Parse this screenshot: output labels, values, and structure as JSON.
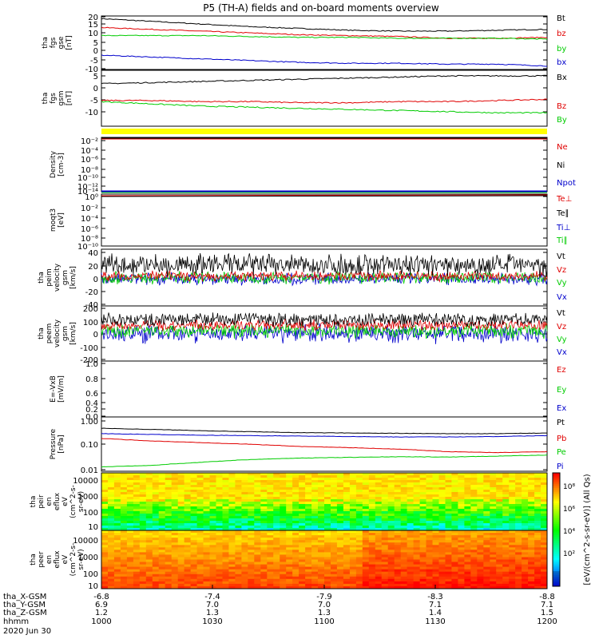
{
  "title": "P5 (TH-A) fields and on-board moments overview",
  "colors": {
    "black": "#000000",
    "red": "#e00000",
    "green": "#00cc00",
    "blue": "#0000cc",
    "yellow": "#ffff00"
  },
  "chart_data": [
    {
      "id": "fgs_gse",
      "type": "line",
      "ylabel": [
        "tha",
        "fgs",
        "gse",
        "[nT]"
      ],
      "ylim": [
        -10,
        20
      ],
      "ticks": [
        "20",
        "15",
        "10",
        "5",
        "0",
        "-5",
        "-10"
      ],
      "series": [
        {
          "name": "Bt",
          "color": "black",
          "values": [
            18.5,
            17,
            15.5,
            14,
            13,
            12,
            11.5,
            11.5,
            12,
            12.5
          ]
        },
        {
          "name": "bz",
          "color": "red",
          "values": [
            13.5,
            12.5,
            11.5,
            10.5,
            9.5,
            9,
            8.5,
            7.5,
            7.5,
            8
          ]
        },
        {
          "name": "by",
          "color": "green",
          "values": [
            9,
            9,
            9,
            8.5,
            8,
            8,
            7.5,
            7.5,
            7.5,
            7
          ]
        },
        {
          "name": "bx",
          "color": "blue",
          "values": [
            -2,
            -3,
            -4,
            -5,
            -6,
            -6.5,
            -6.5,
            -7,
            -7,
            -8
          ]
        }
      ]
    },
    {
      "id": "fgs_gsm",
      "type": "line",
      "ylabel": [
        "tha",
        "fgs",
        "gsm",
        "[nT]"
      ],
      "ylim": [
        -15,
        10
      ],
      "ticks": [
        "5",
        "0",
        "-5",
        "-10"
      ],
      "series": [
        {
          "name": "Bx",
          "color": "black",
          "values": [
            4,
            4.5,
            5,
            5.5,
            6,
            6.5,
            7,
            7.5,
            7.5,
            7.5
          ]
        },
        {
          "name": "Bz",
          "color": "red",
          "values": [
            -3.5,
            -3.5,
            -4,
            -4,
            -4.5,
            -4.5,
            -4,
            -4,
            -3.5,
            -3
          ]
        },
        {
          "name": "By",
          "color": "green",
          "values": [
            -4,
            -5,
            -6,
            -6.5,
            -7,
            -7.5,
            -8,
            -8.5,
            -9,
            -9
          ]
        }
      ]
    },
    {
      "id": "density",
      "type": "line",
      "ylabel": [
        "Density",
        "[cm-3]"
      ],
      "ticks": [
        "10⁻²",
        "10⁻⁴",
        "10⁻⁶",
        "10⁻⁸",
        "10⁻¹⁰",
        "10⁻¹²",
        "10⁻¹⁴"
      ],
      "series": [
        {
          "name": "Ne",
          "color": "red"
        },
        {
          "name": "Ni",
          "color": "black"
        },
        {
          "name": "Npot",
          "color": "blue"
        }
      ]
    },
    {
      "id": "temperature",
      "type": "line",
      "ylabel": [
        "moqt3",
        "[eV]"
      ],
      "ticks": [
        "10⁰",
        "10⁻²",
        "10⁻⁴",
        "10⁻⁶",
        "10⁻⁸",
        "10⁻¹⁰"
      ],
      "series": [
        {
          "name": "Te⊥",
          "color": "red"
        },
        {
          "name": "Te∥",
          "color": "black"
        },
        {
          "name": "Ti⊥",
          "color": "blue"
        },
        {
          "name": "Ti∥",
          "color": "green"
        }
      ]
    },
    {
      "id": "peim_velocity",
      "type": "line",
      "ylabel": [
        "tha",
        "peim",
        "velocity",
        "gsm",
        "[km/s]"
      ],
      "ylim": [
        -40,
        40
      ],
      "ticks": [
        "40",
        "20",
        "0",
        "-20",
        "-40"
      ],
      "series": [
        {
          "name": "Vt",
          "color": "black",
          "mean": 18,
          "spread": 18
        },
        {
          "name": "Vz",
          "color": "red",
          "mean": 2,
          "spread": 8
        },
        {
          "name": "Vy",
          "color": "green",
          "mean": 0,
          "spread": 10
        },
        {
          "name": "Vx",
          "color": "blue",
          "mean": -2,
          "spread": 10
        }
      ]
    },
    {
      "id": "peem_velocity",
      "type": "line",
      "ylabel": [
        "tha",
        "peem",
        "velocity",
        "gsm",
        "[km/s]"
      ],
      "ylim": [
        -200,
        200
      ],
      "ticks": [
        "200",
        "100",
        "0",
        "-100",
        "-200"
      ],
      "series": [
        {
          "name": "Vt",
          "color": "black",
          "mean": 100,
          "spread": 60
        },
        {
          "name": "Vz",
          "color": "red",
          "mean": 60,
          "spread": 45
        },
        {
          "name": "Vy",
          "color": "green",
          "mean": 20,
          "spread": 60
        },
        {
          "name": "Vx",
          "color": "blue",
          "mean": 0,
          "spread": 80
        }
      ]
    },
    {
      "id": "efield",
      "type": "line",
      "ylabel": [
        "E=-VxB",
        "[mV/m]"
      ],
      "ylim": [
        0,
        1
      ],
      "ticks": [
        "1.0",
        "0.8",
        "0.6",
        "0.4",
        "0.2",
        "0.0"
      ],
      "series": [
        {
          "name": "Ez",
          "color": "red"
        },
        {
          "name": "Ey",
          "color": "green"
        },
        {
          "name": "Ex",
          "color": "blue"
        }
      ]
    },
    {
      "id": "pressure",
      "type": "line",
      "yscale": "log",
      "ylabel": [
        "Pressure",
        "[nPa]"
      ],
      "ylim": [
        0.01,
        1.0
      ],
      "ticks": [
        "1.00",
        "0.10",
        "0.01"
      ],
      "series": [
        {
          "name": "Pt",
          "color": "black",
          "values": [
            0.5,
            0.45,
            0.4,
            0.36,
            0.33,
            0.32,
            0.31,
            0.3,
            0.3,
            0.32
          ]
        },
        {
          "name": "Pb",
          "color": "red",
          "values": [
            0.19,
            0.15,
            0.13,
            0.11,
            0.09,
            0.08,
            0.07,
            0.055,
            0.05,
            0.055
          ]
        },
        {
          "name": "Pe",
          "color": "green",
          "values": [
            0.013,
            0.015,
            0.02,
            0.026,
            0.03,
            0.032,
            0.034,
            0.033,
            0.036,
            0.04
          ]
        },
        {
          "name": "Pi",
          "color": "blue",
          "values": [
            0.3,
            0.28,
            0.26,
            0.25,
            0.24,
            0.23,
            0.22,
            0.22,
            0.23,
            0.25
          ]
        }
      ]
    },
    {
      "id": "peir_en",
      "type": "heatmap",
      "ylabel": [
        "tha",
        "peir",
        "en",
        "eflux",
        "eV",
        "(cm^2-s-",
        "sr-eV)"
      ],
      "ticks": [
        "10000",
        "1000",
        "100",
        "10"
      ]
    },
    {
      "id": "peer_en",
      "type": "heatmap",
      "ylabel": [
        "tha",
        "peer",
        "en",
        "eflux",
        "eV",
        "(cm^2-s-",
        "sr-eV)"
      ],
      "ticks": [
        "10000",
        "1000",
        "100",
        "10"
      ]
    }
  ],
  "colorbar": {
    "label": "[eV/(cm^2-s-sr-eV)] (All Qs)",
    "ticks": [
      "10⁸",
      "10⁶",
      "10⁴",
      "10²"
    ]
  },
  "xaxis": {
    "rows": [
      {
        "label": "tha_X-GSM",
        "values": [
          "-6.8",
          "-7.4",
          "-7.9",
          "-8.3",
          "-8.8"
        ]
      },
      {
        "label": "tha_Y-GSM",
        "values": [
          "6.9",
          "7.0",
          "7.0",
          "7.1",
          "7.1"
        ]
      },
      {
        "label": "tha_Z-GSM",
        "values": [
          "1.2",
          "1.3",
          "1.3",
          "1.4",
          "1.5"
        ]
      },
      {
        "label": "hhmm",
        "values": [
          "1000",
          "1030",
          "1100",
          "1130",
          "1200"
        ]
      }
    ],
    "date": "2020 Jun 30"
  }
}
